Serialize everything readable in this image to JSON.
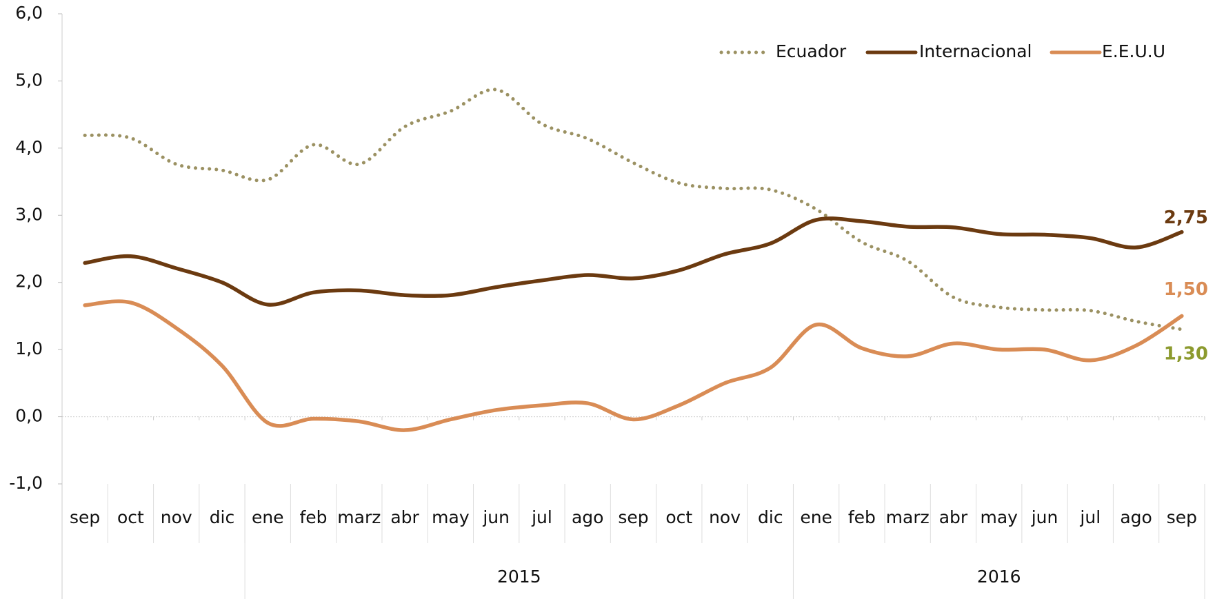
{
  "chart_data": {
    "type": "line",
    "categories": [
      "sep",
      "oct",
      "nov",
      "dic",
      "ene",
      "feb",
      "marz",
      "abr",
      "may",
      "jun",
      "jul",
      "ago",
      "sep",
      "oct",
      "nov",
      "dic",
      "ene",
      "feb",
      "marz",
      "abr",
      "may",
      "jun",
      "jul",
      "ago",
      "sep"
    ],
    "year_groups": [
      {
        "label": null,
        "start": 0,
        "end": 3
      },
      {
        "label": "2015",
        "start": 4,
        "end": 15
      },
      {
        "label": "2016",
        "start": 16,
        "end": 24
      }
    ],
    "series": [
      {
        "name": "Ecuador",
        "color": "#9b9162",
        "dash": "dotted",
        "label_color": "#8c9a2e",
        "values": [
          4.19,
          4.15,
          3.76,
          3.67,
          3.53,
          4.05,
          3.76,
          4.32,
          4.55,
          4.87,
          4.36,
          4.14,
          3.78,
          3.48,
          3.4,
          3.38,
          3.09,
          2.6,
          2.32,
          1.78,
          1.63,
          1.59,
          1.58,
          1.42,
          1.3
        ],
        "value_labels": [
          null,
          null,
          null,
          null,
          null,
          null,
          null,
          null,
          null,
          null,
          null,
          null,
          null,
          null,
          null,
          null,
          null,
          null,
          null,
          null,
          null,
          null,
          null,
          null,
          "1,30"
        ]
      },
      {
        "name": "Internacional",
        "color": "#6b3a10",
        "dash": "solid",
        "label_color": "#6b3a10",
        "values": [
          2.29,
          2.39,
          2.21,
          2.0,
          1.67,
          1.85,
          1.88,
          1.81,
          1.81,
          1.93,
          2.03,
          2.11,
          2.06,
          2.18,
          2.42,
          2.58,
          2.93,
          2.91,
          2.83,
          2.82,
          2.72,
          2.71,
          2.66,
          2.52,
          2.75
        ],
        "value_labels": [
          null,
          null,
          null,
          null,
          null,
          null,
          null,
          null,
          null,
          null,
          null,
          null,
          null,
          null,
          null,
          null,
          null,
          null,
          null,
          null,
          null,
          null,
          null,
          null,
          "2,75"
        ]
      },
      {
        "name": "E.E.U.U",
        "color": "#d98c55",
        "dash": "solid",
        "label_color": "#d98c55",
        "values": [
          1.66,
          1.7,
          1.32,
          0.76,
          -0.09,
          -0.03,
          -0.07,
          -0.2,
          -0.04,
          0.1,
          0.17,
          0.2,
          -0.04,
          0.17,
          0.5,
          0.73,
          1.37,
          1.02,
          0.9,
          1.09,
          1.0,
          1.0,
          0.84,
          1.06,
          1.5
        ],
        "value_labels": [
          null,
          null,
          null,
          null,
          null,
          null,
          null,
          null,
          null,
          null,
          null,
          null,
          null,
          null,
          null,
          null,
          null,
          null,
          null,
          null,
          null,
          null,
          null,
          null,
          "1,50"
        ]
      }
    ],
    "ylim": [
      -1,
      6
    ],
    "yticks": [
      {
        "value": -1,
        "label": "-1,0"
      },
      {
        "value": 0,
        "label": "0,0"
      },
      {
        "value": 1,
        "label": "1,0"
      },
      {
        "value": 2,
        "label": "2,0"
      },
      {
        "value": 3,
        "label": "3,0"
      },
      {
        "value": 4,
        "label": "4,0"
      },
      {
        "value": 5,
        "label": "5,0"
      },
      {
        "value": 6,
        "label": "6,0"
      }
    ],
    "legend": "top-right"
  }
}
